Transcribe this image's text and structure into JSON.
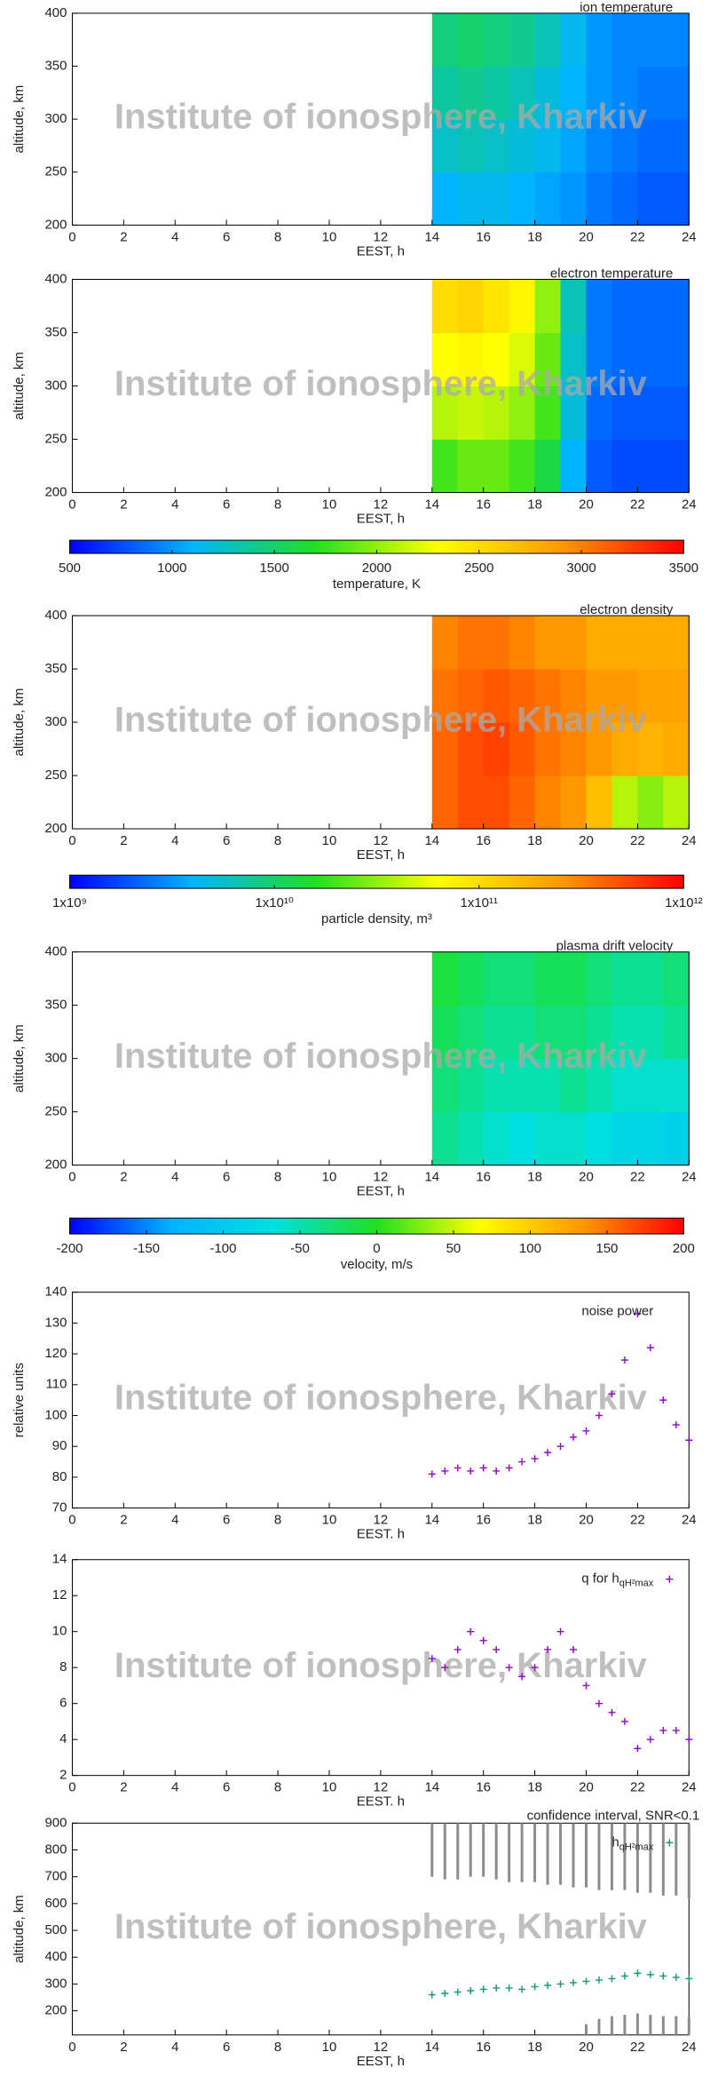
{
  "watermark": "Institute of ionosphere, Kharkiv",
  "chart_data": [
    {
      "type": "heatmap",
      "title": "ion temperature",
      "xlabel": "EEST, h",
      "ylabel": "altitude, km",
      "xlim": [
        0,
        24
      ],
      "ylim": [
        200,
        400
      ],
      "xticks": [
        0,
        2,
        4,
        6,
        8,
        10,
        12,
        14,
        16,
        18,
        20,
        22,
        24
      ],
      "yticks": [
        200,
        250,
        300,
        350,
        400
      ],
      "x_bins": [
        14,
        15,
        16,
        17,
        18,
        19,
        20,
        21,
        22,
        23,
        24
      ],
      "y_bins": [
        200,
        250,
        300,
        350,
        400
      ],
      "values": [
        [
          1100,
          1150,
          1150,
          1100,
          1050,
          1000,
          900,
          850,
          800,
          800
        ],
        [
          1250,
          1300,
          1250,
          1200,
          1150,
          1050,
          950,
          900,
          850,
          850
        ],
        [
          1350,
          1400,
          1350,
          1300,
          1200,
          1100,
          1000,
          950,
          900,
          900
        ],
        [
          1450,
          1500,
          1450,
          1400,
          1300,
          1150,
          1000,
          950,
          950,
          950
        ]
      ]
    },
    {
      "type": "heatmap",
      "title": "electron temperature",
      "xlabel": "EEST, h",
      "ylabel": "altitude, km",
      "xlim": [
        0,
        24
      ],
      "ylim": [
        200,
        400
      ],
      "xticks": [
        0,
        2,
        4,
        6,
        8,
        10,
        12,
        14,
        16,
        18,
        20,
        22,
        24
      ],
      "yticks": [
        200,
        250,
        300,
        350,
        400
      ],
      "x_bins": [
        14,
        15,
        16,
        17,
        18,
        19,
        20,
        21,
        22,
        23,
        24
      ],
      "y_bins": [
        200,
        250,
        300,
        350,
        400
      ],
      "values": [
        [
          1800,
          1900,
          1900,
          1800,
          1600,
          1100,
          800,
          750,
          750,
          750
        ],
        [
          2100,
          2150,
          2100,
          2000,
          1800,
          1200,
          850,
          800,
          800,
          800
        ],
        [
          2300,
          2350,
          2300,
          2200,
          1900,
          1250,
          900,
          850,
          850,
          850
        ],
        [
          2500,
          2550,
          2450,
          2350,
          2000,
          1300,
          900,
          850,
          850,
          850
        ]
      ]
    },
    {
      "type": "colorbar",
      "label": "temperature, K",
      "lim": [
        500,
        3500
      ],
      "ticks": [
        500,
        1000,
        1500,
        2000,
        2500,
        3000,
        3500
      ],
      "colors": [
        "#0000ff",
        "#00b4ff",
        "#20e020",
        "#ffff00",
        "#ff9900",
        "#ff0000"
      ]
    },
    {
      "type": "heatmap",
      "title": "electron density",
      "xlabel": "EEST, h",
      "ylabel": "altitude, km",
      "xlim": [
        0,
        24
      ],
      "ylim": [
        200,
        400
      ],
      "xticks": [
        0,
        2,
        4,
        6,
        8,
        10,
        12,
        14,
        16,
        18,
        20,
        22,
        24
      ],
      "yticks": [
        200,
        250,
        300,
        350,
        400
      ],
      "x_bins": [
        14,
        15,
        16,
        17,
        18,
        19,
        20,
        21,
        22,
        23,
        24
      ],
      "y_bins": [
        200,
        250,
        300,
        350,
        400
      ],
      "values": [
        [
          400000000000,
          500000000000,
          500000000000,
          400000000000,
          300000000000,
          250000000000,
          150000000000,
          40000000000,
          30000000000,
          40000000000
        ],
        [
          400000000000,
          500000000000,
          550000000000,
          450000000000,
          350000000000,
          300000000000,
          250000000000,
          200000000000,
          180000000000,
          200000000000
        ],
        [
          350000000000,
          400000000000,
          450000000000,
          400000000000,
          350000000000,
          300000000000,
          250000000000,
          250000000000,
          220000000000,
          220000000000
        ],
        [
          300000000000,
          350000000000,
          350000000000,
          300000000000,
          250000000000,
          250000000000,
          200000000000,
          200000000000,
          200000000000,
          200000000000
        ]
      ]
    },
    {
      "type": "colorbar",
      "label": "particle density, m³",
      "lim": [
        1000000000,
        1000000000000
      ],
      "log_scale": true,
      "ticks": [
        {
          "value": 1000000000,
          "label": "1x10⁹"
        },
        {
          "value": 10000000000,
          "label": "1x10¹⁰"
        },
        {
          "value": 100000000000,
          "label": "1x10¹¹"
        },
        {
          "value": 1000000000000,
          "label": "1x10¹²"
        }
      ],
      "colors": [
        "#0000ff",
        "#00b4ff",
        "#20e020",
        "#ffff00",
        "#ff9900",
        "#ff0000"
      ]
    },
    {
      "type": "heatmap",
      "title": "plasma drift velocity",
      "xlabel": "EEST, h",
      "ylabel": "altitude, km",
      "xlim": [
        0,
        24
      ],
      "ylim": [
        200,
        400
      ],
      "xticks": [
        0,
        2,
        4,
        6,
        8,
        10,
        12,
        14,
        16,
        18,
        20,
        22,
        24
      ],
      "yticks": [
        200,
        250,
        300,
        350,
        400
      ],
      "x_bins": [
        14,
        15,
        16,
        17,
        18,
        19,
        20,
        21,
        22,
        23,
        24
      ],
      "y_bins": [
        200,
        250,
        300,
        350,
        400
      ],
      "values": [
        [
          -40,
          -50,
          -60,
          -70,
          -60,
          -60,
          -70,
          -80,
          -80,
          -90
        ],
        [
          -30,
          -40,
          -50,
          -50,
          -50,
          -40,
          -50,
          -60,
          -60,
          -60
        ],
        [
          -20,
          -30,
          -40,
          -40,
          -30,
          -30,
          -40,
          -50,
          -50,
          -40
        ],
        [
          -10,
          -20,
          -30,
          -30,
          -20,
          -20,
          -30,
          -40,
          -40,
          -30
        ]
      ]
    },
    {
      "type": "colorbar",
      "label": "velocity, m/s",
      "lim": [
        -200,
        200
      ],
      "ticks": [
        -200,
        -150,
        -100,
        -50,
        0,
        50,
        100,
        150,
        200
      ],
      "colors": [
        "#0000ff",
        "#00b4ff",
        "#00e0e0",
        "#20e020",
        "#ffff00",
        "#ff9900",
        "#ff0000"
      ]
    },
    {
      "type": "scatter",
      "xlabel": "EEST. h",
      "ylabel": "relative units",
      "xlim": [
        0,
        24
      ],
      "ylim": [
        70,
        140
      ],
      "xticks": [
        0,
        2,
        4,
        6,
        8,
        10,
        12,
        14,
        16,
        18,
        20,
        22,
        24
      ],
      "yticks": [
        70,
        80,
        90,
        100,
        110,
        120,
        130,
        140
      ],
      "x": [
        14,
        14.5,
        15,
        15.5,
        16,
        16.5,
        17,
        17.5,
        18,
        18.5,
        19,
        19.5,
        20,
        20.5,
        21,
        21.5,
        22,
        22.5,
        23,
        23.5,
        24
      ],
      "series": [
        {
          "name": "noise power",
          "color": "#9400d3",
          "values": [
            81,
            82,
            83,
            82,
            83,
            82,
            83,
            85,
            86,
            88,
            90,
            93,
            95,
            100,
            107,
            118,
            133,
            122,
            105,
            97,
            92
          ]
        }
      ]
    },
    {
      "type": "scatter",
      "xlabel": "EEST. h",
      "xlim": [
        0,
        24
      ],
      "ylim": [
        2,
        14
      ],
      "xticks": [
        0,
        2,
        4,
        6,
        8,
        10,
        12,
        14,
        16,
        18,
        20,
        22,
        24
      ],
      "yticks": [
        2,
        4,
        6,
        8,
        10,
        12,
        14
      ],
      "x": [
        14,
        14.5,
        15,
        15.5,
        16,
        16.5,
        17,
        17.5,
        18,
        18.5,
        19,
        19.5,
        20,
        20.5,
        21,
        21.5,
        22,
        22.5,
        23,
        23.5,
        24
      ],
      "series": [
        {
          "name": "q for h",
          "name_subscript": "qH²max",
          "color": "#9400d3",
          "values": [
            8.5,
            8,
            9,
            10,
            9.5,
            9,
            8,
            7.5,
            8,
            9,
            10,
            9,
            7,
            6,
            5.5,
            5,
            3.5,
            4,
            4.5,
            4.5,
            4
          ]
        }
      ]
    },
    {
      "type": "scatter",
      "xlabel": "EEST, h",
      "ylabel": "altitude, km",
      "xlim": [
        0,
        24
      ],
      "ylim": [
        110,
        900
      ],
      "xticks": [
        0,
        2,
        4,
        6,
        8,
        10,
        12,
        14,
        16,
        18,
        20,
        22,
        24
      ],
      "yticks": [
        200,
        300,
        400,
        500,
        600,
        700,
        800,
        900
      ],
      "x": [
        14,
        14.5,
        15,
        15.5,
        16,
        16.5,
        17,
        17.5,
        18,
        18.5,
        19,
        19.5,
        20,
        20.5,
        21,
        21.5,
        22,
        22.5,
        23,
        23.5,
        24
      ],
      "series": [
        {
          "name": "confidence interval, SNR<0.1",
          "color": "#8c8c8c",
          "low": [
            700,
            690,
            690,
            700,
            700,
            690,
            680,
            680,
            680,
            670,
            670,
            660,
            660,
            650,
            650,
            650,
            640,
            640,
            630,
            630,
            620
          ],
          "high": [
            900,
            900,
            900,
            900,
            900,
            900,
            900,
            900,
            900,
            900,
            900,
            900,
            900,
            900,
            900,
            900,
            900,
            900,
            900,
            900,
            900
          ]
        },
        {
          "color": "#8c8c8c",
          "low": [
            null,
            null,
            null,
            null,
            null,
            null,
            null,
            null,
            null,
            null,
            null,
            null,
            110,
            110,
            110,
            110,
            110,
            110,
            110,
            110,
            110
          ],
          "high": [
            null,
            null,
            null,
            null,
            null,
            null,
            null,
            null,
            null,
            null,
            null,
            null,
            150,
            170,
            180,
            185,
            190,
            185,
            180,
            180,
            175
          ]
        },
        {
          "name": "h",
          "name_subscript": "qH²max",
          "color": "#119977",
          "values": [
            260,
            265,
            270,
            275,
            280,
            285,
            285,
            280,
            290,
            295,
            300,
            305,
            310,
            315,
            320,
            330,
            340,
            335,
            330,
            325,
            320
          ]
        }
      ]
    }
  ]
}
